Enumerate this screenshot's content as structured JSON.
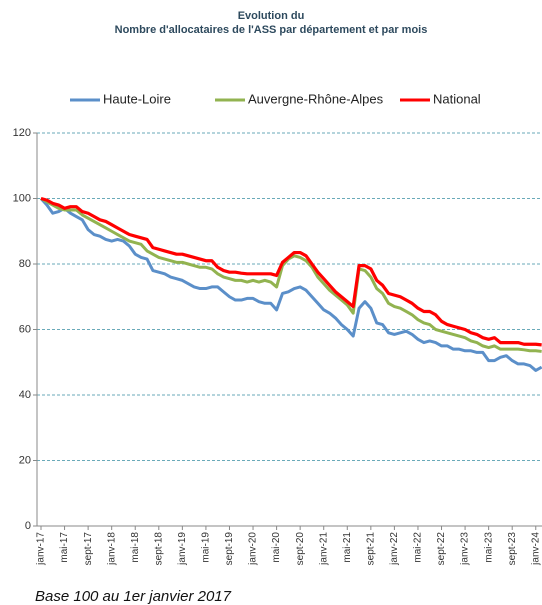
{
  "chart_data": {
    "type": "line",
    "title": "Evolution du",
    "subtitle": "Nombre d'allocataires de l'ASS par département et par mois",
    "note": "Base 100 au 1er janvier 2017",
    "categories": [
      "janv-17",
      null,
      null,
      null,
      "mai-17",
      null,
      null,
      null,
      "sept-17",
      null,
      null,
      null,
      "janv-18",
      null,
      null,
      null,
      "mai-18",
      null,
      null,
      null,
      "sept-18",
      null,
      null,
      null,
      "janv-19",
      null,
      null,
      null,
      "mai-19",
      null,
      null,
      null,
      "sept-19",
      null,
      null,
      null,
      "janv-20",
      null,
      null,
      null,
      "mai-20",
      null,
      null,
      null,
      "sept-20",
      null,
      null,
      null,
      "janv-21",
      null,
      null,
      null,
      "mai-21",
      null,
      null,
      null,
      "sept-21",
      null,
      null,
      null,
      "janv-22",
      null,
      null,
      null,
      "mai-22",
      null,
      null,
      null,
      "sept-22",
      null,
      null,
      null,
      "janv-23",
      null,
      null,
      null,
      "mai-23",
      null,
      null,
      null,
      "sept-23",
      null,
      null,
      null,
      "janv-24",
      null
    ],
    "series": [
      {
        "name": "Haute-Loire",
        "color": "#5b8fc9",
        "values": [
          100,
          98,
          95.5,
          96,
          97,
          95.5,
          94.5,
          93.5,
          90.5,
          89,
          88.5,
          87.5,
          87,
          87.5,
          87,
          85.5,
          83,
          82,
          81.5,
          78,
          77.5,
          77,
          76,
          75.5,
          75,
          74,
          73,
          72.5,
          72.5,
          73,
          73,
          71.5,
          70,
          69,
          69,
          69.5,
          69.5,
          68.5,
          68,
          68,
          66,
          71,
          71.5,
          72.5,
          73,
          72,
          70,
          68,
          66,
          65,
          63.5,
          61.5,
          60,
          58,
          66.5,
          68.5,
          66.5,
          62,
          61.5,
          59,
          58.5,
          59,
          59.5,
          58.5,
          57,
          56,
          56.5,
          56,
          55,
          55,
          54,
          54,
          53.5,
          53.5,
          53,
          53,
          50.5,
          50.5,
          51.5,
          52,
          50.5,
          49.5,
          49.5,
          49,
          47.5,
          48.5
        ]
      },
      {
        "name": "Auvergne-Rhône-Alpes",
        "color": "#92b350",
        "values": [
          100,
          99,
          98,
          97,
          96.5,
          96.5,
          96.5,
          95,
          94,
          93,
          92,
          91,
          90,
          89,
          88,
          87,
          86.5,
          86,
          84,
          83,
          82,
          81.5,
          81,
          80.5,
          80.5,
          80,
          79.5,
          79,
          79,
          78.5,
          77,
          76,
          75.5,
          75,
          75,
          74.5,
          75,
          74.5,
          75,
          74.5,
          73,
          79.5,
          81.5,
          82.5,
          82,
          81,
          79,
          76,
          74,
          72,
          70.5,
          69,
          67.5,
          65,
          78.5,
          78,
          76,
          72.5,
          71,
          68,
          67,
          66.5,
          65.5,
          64.5,
          63,
          62,
          61.5,
          60,
          59.5,
          59,
          58.5,
          58,
          57.5,
          56.5,
          56,
          55,
          54.5,
          55,
          54,
          54,
          54,
          54,
          53.8,
          53.5,
          53.5,
          53.3
        ]
      },
      {
        "name": "National",
        "color": "#ff0000",
        "values": [
          100,
          99.5,
          98.5,
          98,
          97,
          97.5,
          97.5,
          96,
          95.5,
          94.5,
          93.5,
          93,
          92,
          91,
          90,
          89,
          88.5,
          88,
          87.5,
          85,
          84.5,
          84,
          83.5,
          83,
          83,
          82.5,
          82,
          81.5,
          81,
          81,
          79,
          78,
          77.5,
          77.5,
          77.2,
          77,
          77,
          77,
          77,
          77,
          76.5,
          80.5,
          82,
          83.5,
          83.5,
          82.5,
          80,
          77.5,
          75.5,
          73.5,
          71.5,
          70,
          68.5,
          67,
          79.5,
          79.5,
          78.5,
          75,
          73.5,
          71,
          70.5,
          70,
          69,
          68,
          66.5,
          65.5,
          65.5,
          64.5,
          62.5,
          61.5,
          61,
          60.5,
          60,
          59,
          58.5,
          57.5,
          57,
          57.5,
          56,
          56,
          56,
          56,
          55.5,
          55.5,
          55.5,
          55.3
        ]
      }
    ],
    "ylim": [
      0,
      120
    ],
    "yticks": [
      0,
      20,
      40,
      60,
      80,
      100,
      120
    ],
    "grid": true,
    "legend": "top"
  }
}
